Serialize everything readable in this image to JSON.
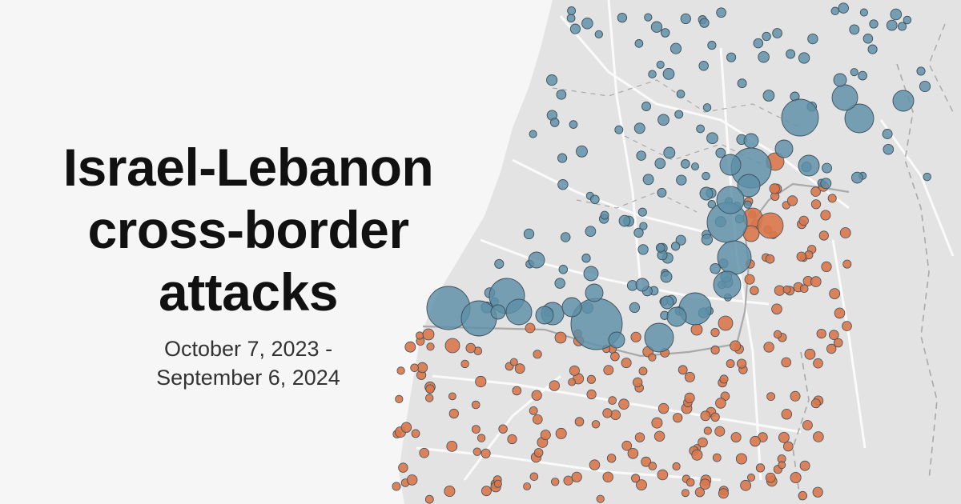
{
  "header": {
    "title_lines": [
      "Israel-Lebanon",
      "cross-border",
      "attacks"
    ],
    "date_range_lines": [
      "October 7, 2023 -",
      "September 6, 2024"
    ]
  },
  "map": {
    "colors": {
      "background": "#f6f6f6",
      "land": "#e3e3e3",
      "roads": "#fafafa",
      "border": "#9a9a9a",
      "attacks_in_lebanon": "#5d8fa8",
      "attacks_in_israel": "#d9774a",
      "marker_stroke": "#3d4f5a"
    }
  }
}
